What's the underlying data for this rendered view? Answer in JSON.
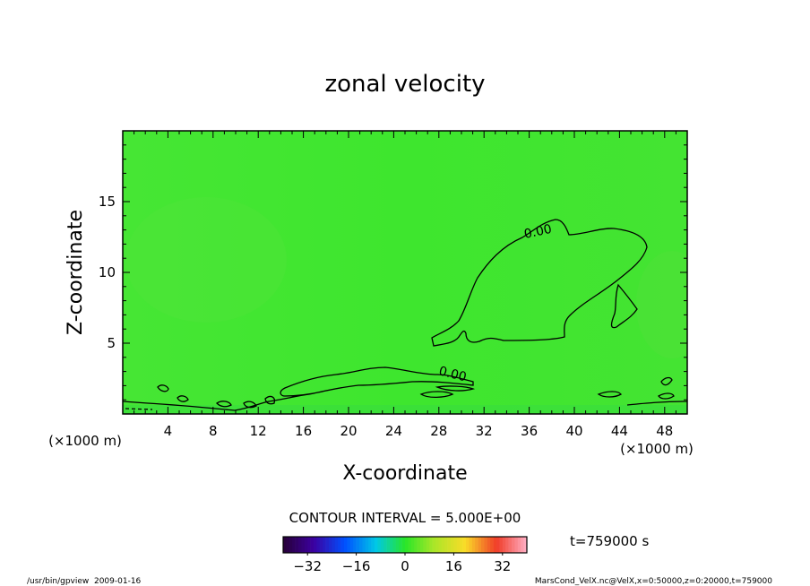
{
  "chart_data": {
    "type": "heatmap",
    "title": "zonal velocity",
    "xlabel": "X-coordinate",
    "ylabel": "Z-coordinate",
    "x_unit": "(×1000 m)",
    "y_unit": "(×1000 m)",
    "xlim": [
      0,
      50
    ],
    "ylim": [
      0,
      20
    ],
    "x_ticks": [
      4,
      8,
      12,
      16,
      20,
      24,
      28,
      32,
      36,
      40,
      44,
      48
    ],
    "y_ticks": [
      5,
      10,
      15
    ],
    "contour_labels": [
      "0.00",
      "0.00"
    ],
    "contour_interval": "CONTOUR INTERVAL = 5.000E+00",
    "colorbar": {
      "range": [
        -40,
        40
      ],
      "ticks": [
        -32,
        -16,
        0,
        16,
        32
      ]
    },
    "field_color": "#3ee62e",
    "time_label": "t=759000 s"
  },
  "footer": {
    "left": "/usr/bin/gpview  2009-01-16",
    "right": "MarsCond_VelX.nc@VelX,x=0:50000,z=0:20000,t=759000"
  }
}
